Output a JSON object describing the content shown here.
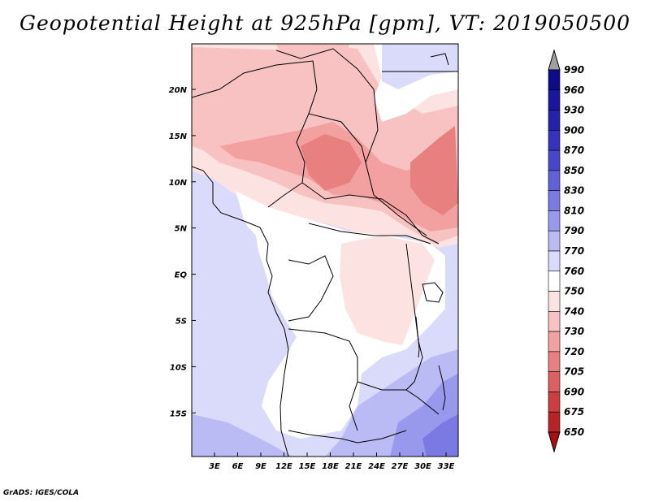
{
  "title": "Geopotential Height at 925hPa [gpm], VT: 2019050500",
  "credit": "GrADS: IGES/COLA",
  "lat_ticks": [
    "20N",
    "15N",
    "10N",
    "5N",
    "EQ",
    "5S",
    "10S",
    "15S"
  ],
  "lon_ticks": [
    "3E",
    "6E",
    "9E",
    "12E",
    "15E",
    "18E",
    "21E",
    "24E",
    "27E",
    "30E",
    "33E"
  ],
  "colorbar": {
    "labels": [
      "990",
      "960",
      "930",
      "900",
      "870",
      "850",
      "830",
      "810",
      "790",
      "770",
      "760",
      "750",
      "740",
      "730",
      "720",
      "705",
      "690",
      "675",
      "650"
    ],
    "colors": [
      "#a0a0a0",
      "#0c0c8a",
      "#18169c",
      "#2422ac",
      "#3632be",
      "#4a46cc",
      "#6060d8",
      "#7a7ae2",
      "#9898ec",
      "#babaf4",
      "#dadafb",
      "#ffffff",
      "#fde2e2",
      "#f8c2c2",
      "#f2a0a0",
      "#e88080",
      "#dc6060",
      "#cc3e3e",
      "#b82424",
      "#a81010"
    ]
  },
  "colors": {
    "ocean": "#dadafb",
    "border": "#000000"
  }
}
